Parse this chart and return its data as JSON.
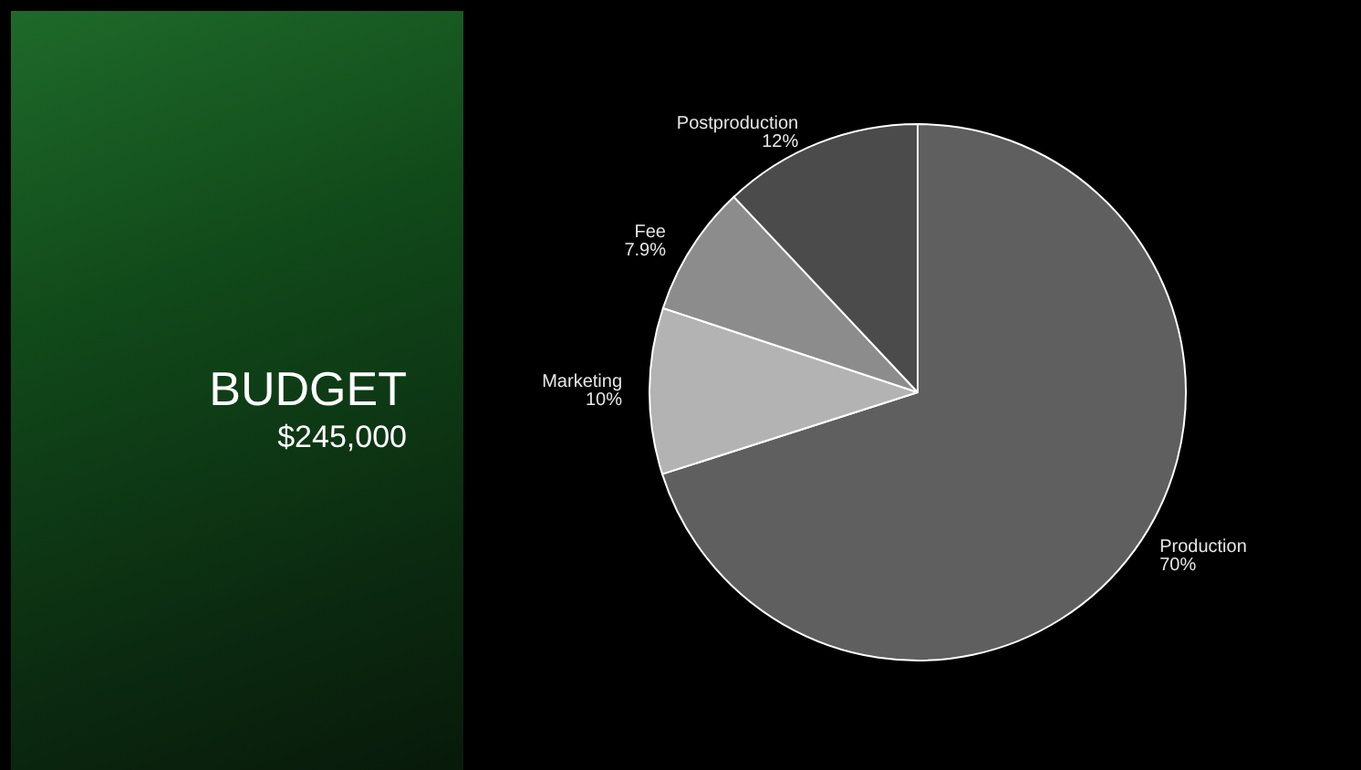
{
  "chart_data": {
    "type": "pie",
    "title": "BUDGET",
    "subtitle": "$245,000",
    "categories": [
      "Production",
      "Marketing",
      "Fee",
      "Postproduction"
    ],
    "values": [
      70,
      10,
      7.9,
      12
    ],
    "colors": [
      "#5f5f5f",
      "#b3b3b3",
      "#8c8c8c",
      "#4b4b4b"
    ],
    "value_labels": [
      "70%",
      "10%",
      "7.9%",
      "12%"
    ],
    "legend": false
  }
}
